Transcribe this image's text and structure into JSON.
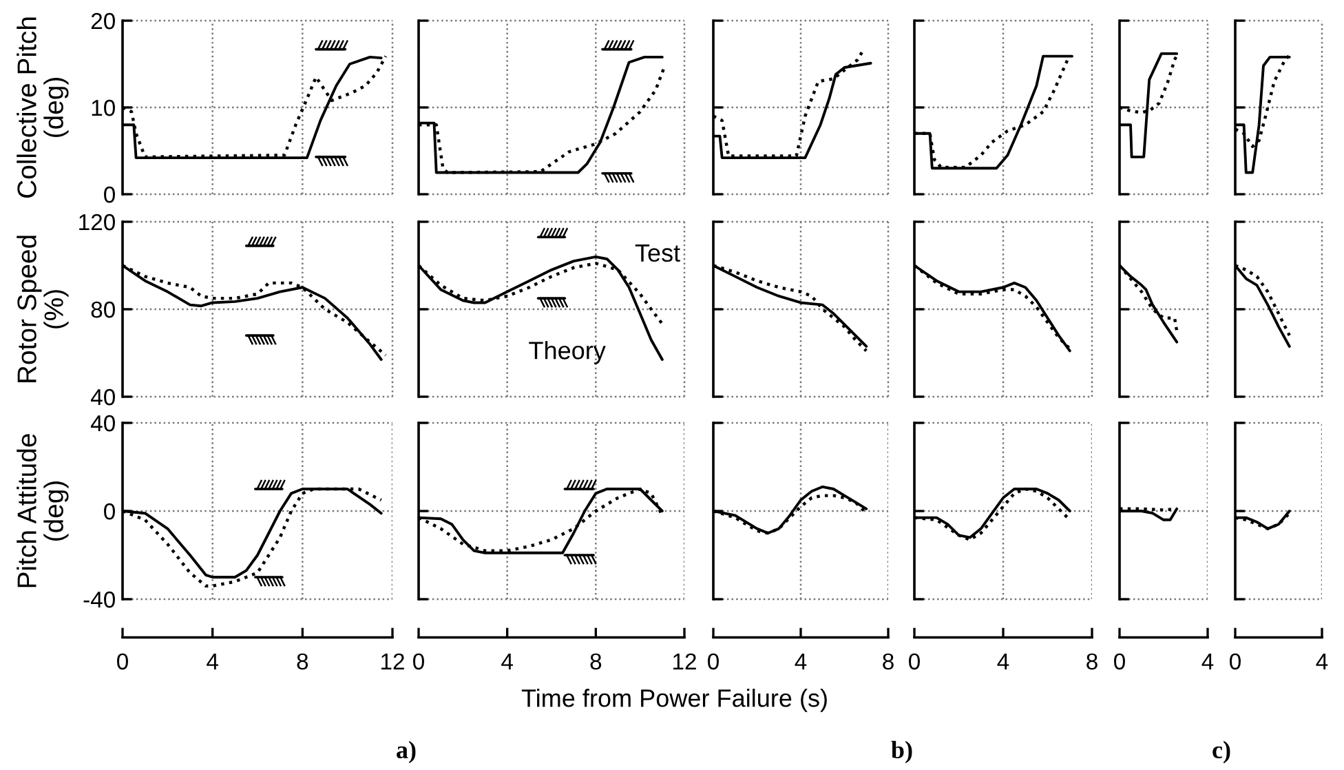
{
  "chart_data": [
    {
      "type": "line",
      "ylabel": "Collective Pitch\n(deg)",
      "xlim": [
        0,
        12
      ],
      "xticks": [
        0,
        4,
        8,
        12
      ],
      "ylim": [
        0,
        20
      ],
      "yticks": [
        0,
        10,
        20
      ],
      "grid": true,
      "tick_labels": "y",
      "series": [
        {
          "color": "#000000",
          "line_style": "solid",
          "x": [
            0,
            0.5,
            0.6,
            8.2,
            8.8,
            9.5,
            10.1,
            11,
            11.5
          ],
          "values": [
            8,
            8,
            4.2,
            4.2,
            8.5,
            12.5,
            15,
            15.8,
            15.7
          ]
        },
        {
          "color": "#000000",
          "line_style": "dotted",
          "x": [
            0,
            0.4,
            0.6,
            1.0,
            7.2,
            7.7,
            8.2,
            8.6,
            9.3,
            10.2,
            10.8,
            11.3,
            11.7
          ],
          "values": [
            10,
            9.5,
            7,
            4.3,
            4.5,
            8,
            11,
            13.5,
            10.8,
            11.7,
            12.5,
            14,
            15.9
          ]
        },
        {
          "color": "#000000",
          "line_style": "solid",
          "x": [
            8.6,
            9.9
          ],
          "values": [
            16.7,
            16.7
          ]
        },
        {
          "color": "#000000",
          "line_style": "solid",
          "x": [
            8.6,
            9.9
          ],
          "values": [
            4.3,
            4.3
          ]
        }
      ]
    },
    {
      "type": "line",
      "xlim": [
        0,
        12
      ],
      "xticks": [
        0,
        4,
        8,
        12
      ],
      "ylim": [
        0,
        20
      ],
      "yticks": [
        0,
        10,
        20
      ],
      "grid": true,
      "tick_labels": false,
      "series": [
        {
          "color": "#000000",
          "line_style": "solid",
          "x": [
            0,
            0.7,
            0.8,
            7.2,
            7.6,
            8.2,
            8.8,
            9.5,
            10.2,
            11
          ],
          "values": [
            8.2,
            8.2,
            2.5,
            2.5,
            3.5,
            6,
            10,
            15.2,
            15.8,
            15.8
          ]
        },
        {
          "color": "#000000",
          "line_style": "dotted",
          "x": [
            0,
            0.8,
            1.1,
            1.3,
            5.5,
            6.8,
            8.0,
            8.9,
            10,
            10.7,
            11.1
          ],
          "values": [
            8,
            8,
            3,
            2.5,
            2.6,
            4.9,
            5.8,
            7,
            9.5,
            12,
            14.7
          ]
        },
        {
          "color": "#000000",
          "line_style": "solid",
          "x": [
            8.3,
            9.6
          ],
          "values": [
            16.7,
            16.7
          ]
        },
        {
          "color": "#000000",
          "line_style": "solid",
          "x": [
            8.3,
            9.6
          ],
          "values": [
            2.4,
            2.4
          ]
        }
      ]
    },
    {
      "type": "line",
      "xlim": [
        0,
        8
      ],
      "xticks": [
        0,
        4,
        8
      ],
      "ylim": [
        0,
        20
      ],
      "yticks": [
        0,
        10,
        20
      ],
      "grid": true,
      "tick_labels": false,
      "series": [
        {
          "color": "#000000",
          "line_style": "solid",
          "x": [
            0,
            0.3,
            0.4,
            4.2,
            4.9,
            5.3,
            5.6,
            6.0,
            7.2
          ],
          "values": [
            6.7,
            6.7,
            4.2,
            4.2,
            8,
            11,
            13.8,
            14.6,
            15.1
          ]
        },
        {
          "color": "#000000",
          "line_style": "dotted",
          "x": [
            0,
            0.4,
            0.7,
            3.8,
            4.2,
            4.5,
            4.8,
            5.5,
            6.0,
            6.6,
            6.9
          ],
          "values": [
            9,
            8.5,
            4.4,
            4.4,
            9,
            11,
            13,
            13.3,
            14.3,
            15.5,
            16.8
          ]
        }
      ]
    },
    {
      "type": "line",
      "xlim": [
        0,
        8
      ],
      "xticks": [
        0,
        4,
        8
      ],
      "ylim": [
        0,
        20
      ],
      "yticks": [
        0,
        10,
        20
      ],
      "grid": true,
      "tick_labels": false,
      "series": [
        {
          "color": "#000000",
          "line_style": "solid",
          "x": [
            0,
            0.7,
            0.8,
            3.7,
            4.2,
            4.8,
            5.5,
            5.8,
            7.1
          ],
          "values": [
            7,
            7,
            3,
            3,
            4.5,
            8,
            12.5,
            15.9,
            15.9
          ]
        },
        {
          "color": "#000000",
          "line_style": "dotted",
          "x": [
            0,
            0.7,
            0.9,
            1.2,
            2.3,
            3.0,
            3.5,
            4.2,
            5,
            5.8,
            6.3,
            6.9
          ],
          "values": [
            7,
            7,
            4,
            3.1,
            3.1,
            4.5,
            6,
            7.3,
            8,
            9.5,
            12,
            15.5
          ]
        }
      ]
    },
    {
      "type": "line",
      "xlim": [
        0,
        4
      ],
      "xticks": [
        0,
        4
      ],
      "ylim": [
        0,
        20
      ],
      "yticks": [
        0,
        10,
        20
      ],
      "grid": true,
      "tick_labels": false,
      "series": [
        {
          "color": "#000000",
          "line_style": "solid",
          "x": [
            0,
            0.5,
            0.55,
            1.1,
            1.35,
            1.9,
            2.6
          ],
          "values": [
            8,
            8,
            4.3,
            4.3,
            13.2,
            16.2,
            16.2
          ]
        },
        {
          "color": "#000000",
          "line_style": "dotted",
          "x": [
            0,
            0.5,
            1.0,
            1.4,
            1.8,
            2.2,
            2.5,
            2.6
          ],
          "values": [
            10,
            9.6,
            9.4,
            9.7,
            10.5,
            13,
            15.5,
            16
          ]
        }
      ]
    },
    {
      "type": "line",
      "xlim": [
        0,
        4
      ],
      "xticks": [
        0,
        4
      ],
      "ylim": [
        0,
        20
      ],
      "yticks": [
        0,
        10,
        20
      ],
      "grid": true,
      "tick_labels": false,
      "series": [
        {
          "color": "#000000",
          "line_style": "solid",
          "x": [
            0,
            0.4,
            0.5,
            0.8,
            1.1,
            1.3,
            1.6,
            2.5
          ],
          "values": [
            8,
            8,
            2.5,
            2.5,
            8,
            14.8,
            15.8,
            15.8
          ]
        },
        {
          "color": "#000000",
          "line_style": "dotted",
          "x": [
            0,
            0.4,
            0.8,
            1.1,
            1.4,
            1.8,
            2.3,
            2.5
          ],
          "values": [
            7.5,
            7,
            5.5,
            6.2,
            9,
            13,
            15.5,
            16
          ]
        }
      ]
    },
    {
      "type": "line",
      "ylabel": "Rotor Speed\n(%)",
      "xlim": [
        0,
        12
      ],
      "xticks": [
        0,
        4,
        8,
        12
      ],
      "ylim": [
        40,
        120
      ],
      "yticks": [
        40,
        80,
        120
      ],
      "grid": true,
      "tick_labels": "y",
      "series": [
        {
          "color": "#000000",
          "line_style": "solid",
          "x": [
            0,
            1,
            2,
            3,
            3.5,
            4,
            5,
            6,
            7,
            8,
            9,
            10,
            11,
            11.5
          ],
          "values": [
            100,
            93,
            88,
            82,
            81.5,
            83,
            83.5,
            85,
            88,
            90,
            85,
            76,
            64,
            57
          ]
        },
        {
          "color": "#000000",
          "line_style": "dotted",
          "x": [
            0,
            1,
            2,
            3,
            3.5,
            4,
            5,
            6,
            6.5,
            7.5,
            8,
            9,
            10,
            11,
            11.7
          ],
          "values": [
            100,
            95,
            92,
            90,
            86,
            85,
            85,
            87,
            92,
            92,
            90,
            80,
            74,
            65,
            59
          ]
        },
        {
          "color": "#000000",
          "line_style": "solid",
          "x": [
            5.5,
            6.7
          ],
          "values": [
            109,
            109
          ]
        },
        {
          "color": "#000000",
          "line_style": "solid",
          "x": [
            5.5,
            6.7
          ],
          "values": [
            68,
            68
          ]
        }
      ]
    },
    {
      "type": "line",
      "xlim": [
        0,
        12
      ],
      "xticks": [
        0,
        4,
        8,
        12
      ],
      "ylim": [
        40,
        120
      ],
      "yticks": [
        40,
        80,
        120
      ],
      "grid": true,
      "tick_labels": false,
      "series": [
        {
          "name": "Theory",
          "color": "#000000",
          "line_style": "solid",
          "x": [
            0,
            1,
            2,
            2.5,
            3,
            4,
            5,
            6,
            7,
            8,
            8.5,
            9,
            9.5,
            10,
            10.5,
            11
          ],
          "values": [
            100,
            89,
            84,
            83,
            83,
            88,
            93,
            98,
            102,
            104,
            103,
            98,
            90,
            78,
            66,
            57
          ]
        },
        {
          "name": "Test",
          "color": "#000000",
          "line_style": "dotted",
          "x": [
            0,
            1,
            2,
            3,
            4,
            5,
            6,
            7,
            8,
            9,
            10,
            10.5,
            11.1
          ],
          "values": [
            100,
            91,
            85,
            84,
            86,
            90,
            95,
            99,
            101,
            98,
            87,
            80,
            72
          ]
        },
        {
          "color": "#000000",
          "line_style": "solid",
          "x": [
            5.4,
            6.6
          ],
          "values": [
            113,
            113
          ]
        },
        {
          "color": "#000000",
          "line_style": "solid",
          "x": [
            5.4,
            6.6
          ],
          "values": [
            85,
            85
          ]
        }
      ]
    },
    {
      "type": "line",
      "xlim": [
        0,
        8
      ],
      "xticks": [
        0,
        4,
        8
      ],
      "ylim": [
        40,
        120
      ],
      "yticks": [
        40,
        80,
        120
      ],
      "grid": true,
      "tick_labels": false,
      "series": [
        {
          "color": "#000000",
          "line_style": "solid",
          "x": [
            0,
            1,
            2,
            3,
            4,
            5,
            5.5,
            6,
            7
          ],
          "values": [
            100,
            95,
            90,
            86,
            83,
            82,
            78,
            73,
            63
          ]
        },
        {
          "color": "#000000",
          "line_style": "dotted",
          "x": [
            0,
            1,
            2,
            3,
            4,
            4.5,
            5,
            5.5,
            6,
            6.5,
            7
          ],
          "values": [
            100,
            97,
            93,
            90,
            88,
            86,
            80,
            76,
            72,
            66,
            61
          ]
        }
      ]
    },
    {
      "type": "line",
      "xlim": [
        0,
        8
      ],
      "xticks": [
        0,
        4,
        8
      ],
      "ylim": [
        40,
        120
      ],
      "yticks": [
        40,
        80,
        120
      ],
      "grid": true,
      "tick_labels": false,
      "series": [
        {
          "color": "#000000",
          "line_style": "solid",
          "x": [
            0,
            1,
            2,
            3,
            4,
            4.5,
            5,
            5.5,
            6,
            6.5,
            7
          ],
          "values": [
            100,
            93,
            88,
            88,
            90,
            92,
            90,
            84,
            76,
            68,
            61
          ]
        },
        {
          "color": "#000000",
          "line_style": "dotted",
          "x": [
            0,
            1,
            2,
            3,
            4,
            4.5,
            5,
            5.5,
            6,
            6.5,
            7
          ],
          "values": [
            100,
            92,
            87,
            87,
            89,
            89,
            86,
            81,
            74,
            67,
            62
          ]
        }
      ]
    },
    {
      "type": "line",
      "xlim": [
        0,
        4
      ],
      "xticks": [
        0,
        4
      ],
      "ylim": [
        40,
        120
      ],
      "yticks": [
        40,
        80,
        120
      ],
      "grid": true,
      "tick_labels": false,
      "series": [
        {
          "color": "#000000",
          "line_style": "solid",
          "x": [
            0,
            0.5,
            1.0,
            1.2,
            1.5,
            2,
            2.6
          ],
          "values": [
            100,
            95,
            91,
            89,
            82,
            74,
            65
          ]
        },
        {
          "color": "#000000",
          "line_style": "dotted",
          "x": [
            0,
            0.5,
            1.0,
            1.5,
            2,
            2.5,
            2.6
          ],
          "values": [
            100,
            94,
            88,
            80,
            76,
            76,
            70
          ]
        }
      ]
    },
    {
      "type": "line",
      "xlim": [
        0,
        4
      ],
      "xticks": [
        0,
        4
      ],
      "ylim": [
        40,
        120
      ],
      "yticks": [
        40,
        80,
        120
      ],
      "grid": true,
      "tick_labels": false,
      "series": [
        {
          "color": "#000000",
          "line_style": "solid",
          "x": [
            0,
            0.5,
            1,
            1.5,
            2,
            2.5
          ],
          "values": [
            100,
            94,
            91,
            82,
            72,
            63
          ]
        },
        {
          "color": "#000000",
          "line_style": "dotted",
          "x": [
            0,
            0.5,
            1,
            1.5,
            2,
            2.5
          ],
          "values": [
            100,
            98,
            95,
            88,
            78,
            68
          ]
        }
      ]
    },
    {
      "type": "line",
      "ylabel": "Pitch Attitude\n(deg)",
      "annotations": [
        "a)"
      ],
      "xlim": [
        0,
        12
      ],
      "xticks": [
        0,
        4,
        8,
        12
      ],
      "ylim": [
        -40,
        40
      ],
      "yticks": [
        -40,
        0,
        40
      ],
      "grid": true,
      "series": [
        {
          "color": "#000000",
          "line_style": "solid",
          "x": [
            0,
            1,
            2,
            3,
            3.7,
            4,
            5,
            5.5,
            6,
            6.5,
            7,
            7.5,
            8,
            10,
            11,
            11.5
          ],
          "values": [
            0,
            -1,
            -8,
            -20,
            -29,
            -30,
            -30,
            -27,
            -20,
            -10,
            0,
            8,
            10,
            10,
            3,
            -1
          ]
        },
        {
          "color": "#000000",
          "line_style": "dotted",
          "x": [
            0,
            1,
            2,
            3,
            3.7,
            4,
            5,
            6,
            7,
            7.5,
            8,
            8.5,
            10.5,
            11.5
          ],
          "values": [
            0,
            -4,
            -15,
            -28,
            -34,
            -34,
            -32,
            -28,
            -12,
            0,
            8,
            10,
            10,
            5
          ]
        },
        {
          "color": "#000000",
          "line_style": "solid",
          "x": [
            5.9,
            7.1
          ],
          "values": [
            10,
            10
          ]
        },
        {
          "color": "#000000",
          "line_style": "solid",
          "x": [
            5.9,
            7.1
          ],
          "values": [
            -30,
            -30
          ]
        }
      ]
    },
    {
      "type": "line",
      "xlabel": "Time from Power Failure (s)",
      "xlim": [
        0,
        12
      ],
      "xticks": [
        0,
        4,
        8,
        12
      ],
      "ylim": [
        -40,
        40
      ],
      "yticks": [
        -40,
        0,
        40
      ],
      "grid": true,
      "tick_labels": "x",
      "series": [
        {
          "color": "#000000",
          "line_style": "solid",
          "x": [
            0,
            1,
            1.5,
            2,
            2.5,
            3,
            6.5,
            7,
            7.5,
            8,
            8.5,
            10,
            11
          ],
          "values": [
            -3,
            -3.5,
            -6,
            -13,
            -18,
            -19,
            -19,
            -10,
            0,
            8,
            10,
            10,
            0
          ]
        },
        {
          "color": "#000000",
          "line_style": "dotted",
          "x": [
            0,
            1,
            2,
            3,
            4,
            5,
            6,
            7,
            8,
            9,
            10,
            10.5,
            11
          ],
          "values": [
            -3,
            -8,
            -15,
            -18,
            -18,
            -16,
            -13,
            -8,
            0,
            6,
            10,
            8,
            -2
          ]
        },
        {
          "color": "#000000",
          "line_style": "solid",
          "x": [
            6.6,
            7.9
          ],
          "values": [
            10,
            10
          ]
        },
        {
          "color": "#000000",
          "line_style": "solid",
          "x": [
            6.6,
            7.9
          ],
          "values": [
            -20,
            -20
          ]
        }
      ]
    },
    {
      "type": "line",
      "annotations": [
        "b)"
      ],
      "xlim": [
        0,
        8
      ],
      "xticks": [
        0,
        4,
        8
      ],
      "ylim": [
        -40,
        40
      ],
      "yticks": [
        -40,
        0,
        40
      ],
      "grid": true,
      "tick_labels": "x",
      "series": [
        {
          "color": "#000000",
          "line_style": "solid",
          "x": [
            0,
            1,
            2,
            2.5,
            3,
            3.5,
            4,
            4.5,
            5,
            5.5,
            6,
            6.5,
            7
          ],
          "values": [
            0,
            -2,
            -8,
            -10,
            -8,
            -2,
            5,
            9,
            11,
            10,
            7,
            4,
            1
          ]
        },
        {
          "color": "#000000",
          "line_style": "dotted",
          "x": [
            0,
            1,
            2,
            2.5,
            3,
            3.5,
            4,
            4.5,
            5,
            5.5,
            6,
            6.5,
            7
          ],
          "values": [
            0,
            -3,
            -9,
            -10,
            -8,
            -3,
            2,
            6,
            7,
            7,
            6,
            4,
            -1
          ]
        }
      ]
    },
    {
      "type": "line",
      "xlim": [
        0,
        8
      ],
      "xticks": [
        0,
        4,
        8
      ],
      "ylim": [
        -40,
        40
      ],
      "yticks": [
        -40,
        0,
        40
      ],
      "grid": true,
      "tick_labels": "x",
      "series": [
        {
          "color": "#000000",
          "line_style": "solid",
          "x": [
            0,
            1,
            1.5,
            2,
            2.5,
            3,
            3.5,
            4,
            4.5,
            5.5,
            6,
            6.5,
            7
          ],
          "values": [
            -3,
            -3,
            -6,
            -11,
            -12,
            -8,
            -1,
            6,
            10,
            10,
            8,
            5,
            0
          ]
        },
        {
          "color": "#000000",
          "line_style": "dotted",
          "x": [
            0,
            1,
            2,
            2.5,
            3,
            3.5,
            4,
            4.5,
            5,
            5.5,
            6,
            6.5,
            7
          ],
          "values": [
            -3,
            -4,
            -11,
            -13,
            -10,
            -4,
            2,
            8,
            10,
            9,
            6,
            1,
            -4
          ]
        }
      ]
    },
    {
      "type": "line",
      "annotations": [
        "c)"
      ],
      "xlim": [
        0,
        4
      ],
      "xticks": [
        0,
        4
      ],
      "ylim": [
        -40,
        40
      ],
      "yticks": [
        -40,
        0,
        40
      ],
      "grid": true,
      "tick_labels": "x",
      "series": [
        {
          "color": "#000000",
          "line_style": "solid",
          "x": [
            0,
            1,
            1.5,
            2,
            2.3,
            2.6
          ],
          "values": [
            0,
            0,
            -1,
            -4,
            -4,
            1
          ]
        },
        {
          "color": "#000000",
          "line_style": "dotted",
          "x": [
            0,
            1,
            2,
            2.6
          ],
          "values": [
            1,
            1,
            0.5,
            1
          ]
        }
      ]
    },
    {
      "type": "line",
      "xlim": [
        0,
        4
      ],
      "xticks": [
        0,
        4
      ],
      "ylim": [
        -40,
        40
      ],
      "yticks": [
        -40,
        0,
        40
      ],
      "grid": true,
      "tick_labels": "x",
      "series": [
        {
          "color": "#000000",
          "line_style": "solid",
          "x": [
            0,
            0.5,
            1,
            1.5,
            2,
            2.5
          ],
          "values": [
            -3,
            -3,
            -5,
            -8,
            -6,
            0
          ]
        },
        {
          "color": "#000000",
          "line_style": "dotted",
          "x": [
            0,
            0.5,
            1,
            1.5,
            2,
            2.5
          ],
          "values": [
            -3,
            -4,
            -6,
            -8,
            -6,
            -1
          ]
        }
      ]
    }
  ]
}
